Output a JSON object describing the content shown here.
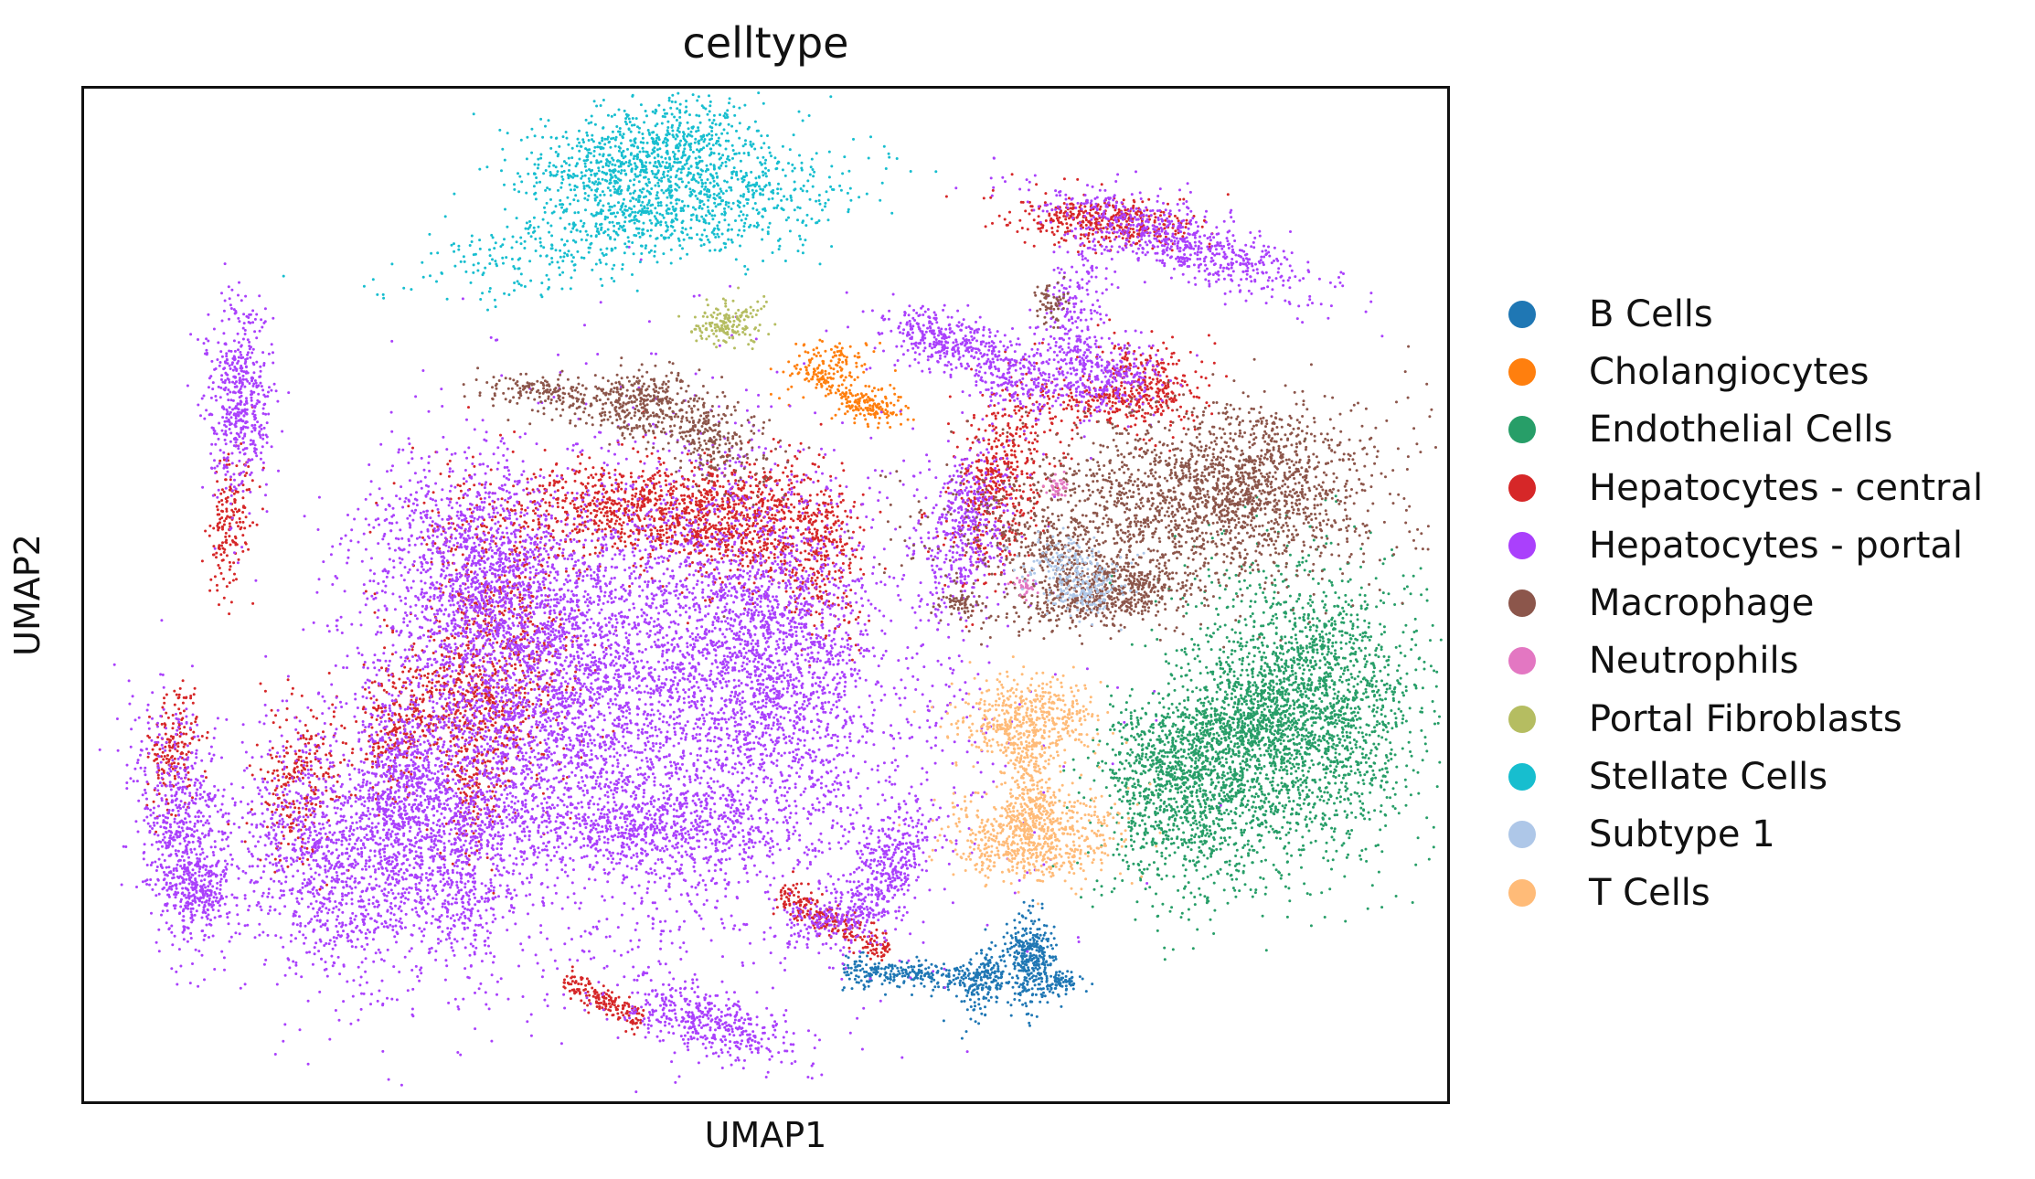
{
  "chart_data": {
    "type": "scatter",
    "title": "celltype",
    "xlabel": "UMAP1",
    "ylabel": "UMAP2",
    "grid": false,
    "axis_ticks": false,
    "legend_position": "right",
    "series": [
      {
        "name": "B Cells",
        "color": "#1f77b4"
      },
      {
        "name": "Cholangiocytes",
        "color": "#ff7f0e"
      },
      {
        "name": "Endothelial Cells",
        "color": "#279e68"
      },
      {
        "name": "Hepatocytes - central",
        "color": "#d62728"
      },
      {
        "name": "Hepatocytes - portal",
        "color": "#aa40fc"
      },
      {
        "name": "Macrophage",
        "color": "#8c564b"
      },
      {
        "name": "Neutrophils",
        "color": "#e377c2"
      },
      {
        "name": "Portal Fibroblasts",
        "color": "#b5bd61"
      },
      {
        "name": "Stellate Cells",
        "color": "#17becf"
      },
      {
        "name": "Subtype 1",
        "color": "#aec7e8"
      },
      {
        "name": "T Cells",
        "color": "#ffbb78"
      }
    ]
  }
}
